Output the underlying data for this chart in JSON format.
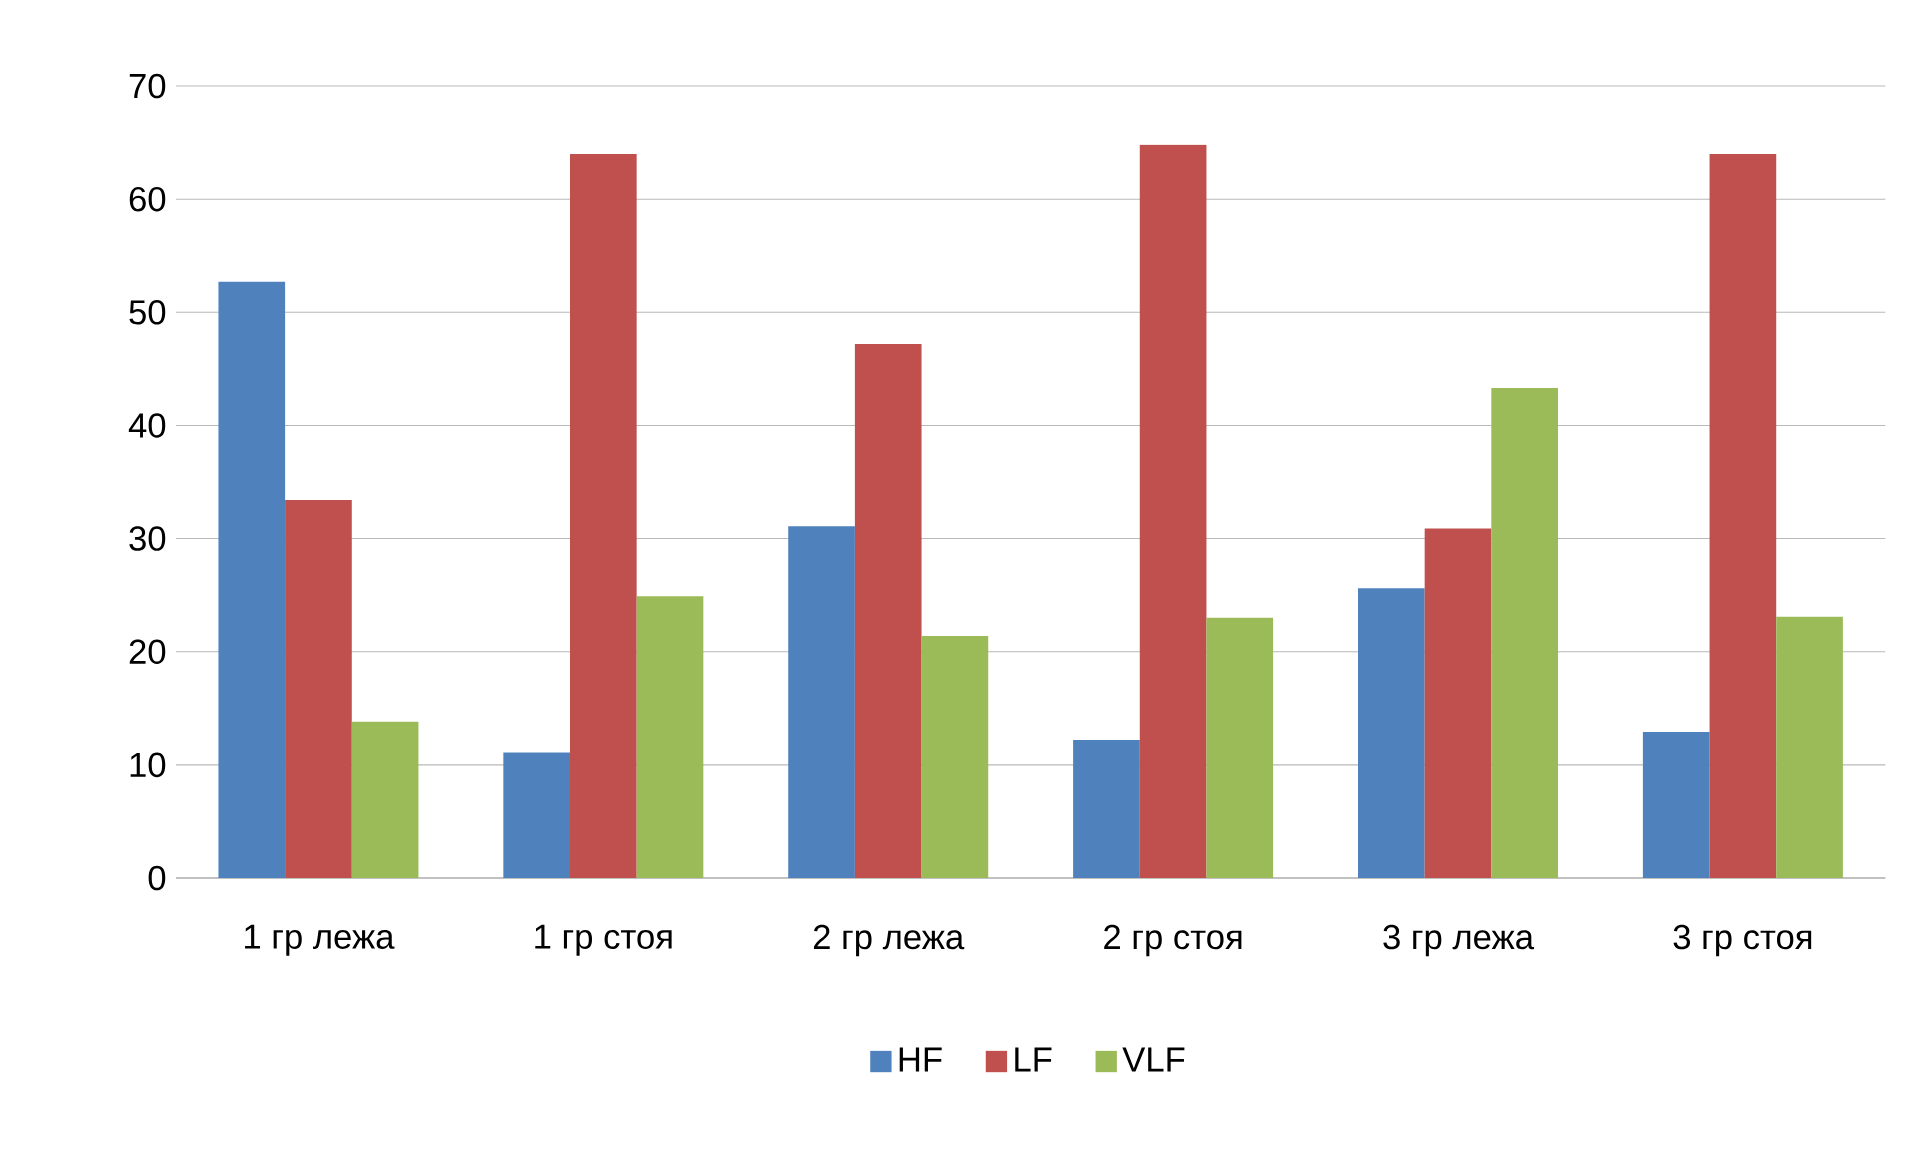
{
  "chart_data": {
    "type": "bar",
    "categories": [
      "1 гр лежа",
      "1 гр стоя",
      "2 гр лежа",
      "2 гр стоя",
      "3 гр лежа",
      "3 гр стоя"
    ],
    "series": [
      {
        "name": "HF",
        "color": "#4f81bd",
        "values": [
          52.7,
          11.1,
          31.1,
          12.2,
          25.6,
          12.9
        ]
      },
      {
        "name": "LF",
        "color": "#c0504d",
        "values": [
          33.4,
          64,
          47.2,
          64.8,
          30.9,
          64
        ]
      },
      {
        "name": "VLF",
        "color": "#9bbb59",
        "values": [
          13.8,
          24.9,
          21.4,
          23,
          43.3,
          23.1
        ]
      }
    ],
    "ylim": [
      0,
      70
    ],
    "yticks": [
      0,
      10,
      20,
      30,
      40,
      50,
      60,
      70
    ],
    "grid": "y",
    "legend": "bottom"
  }
}
